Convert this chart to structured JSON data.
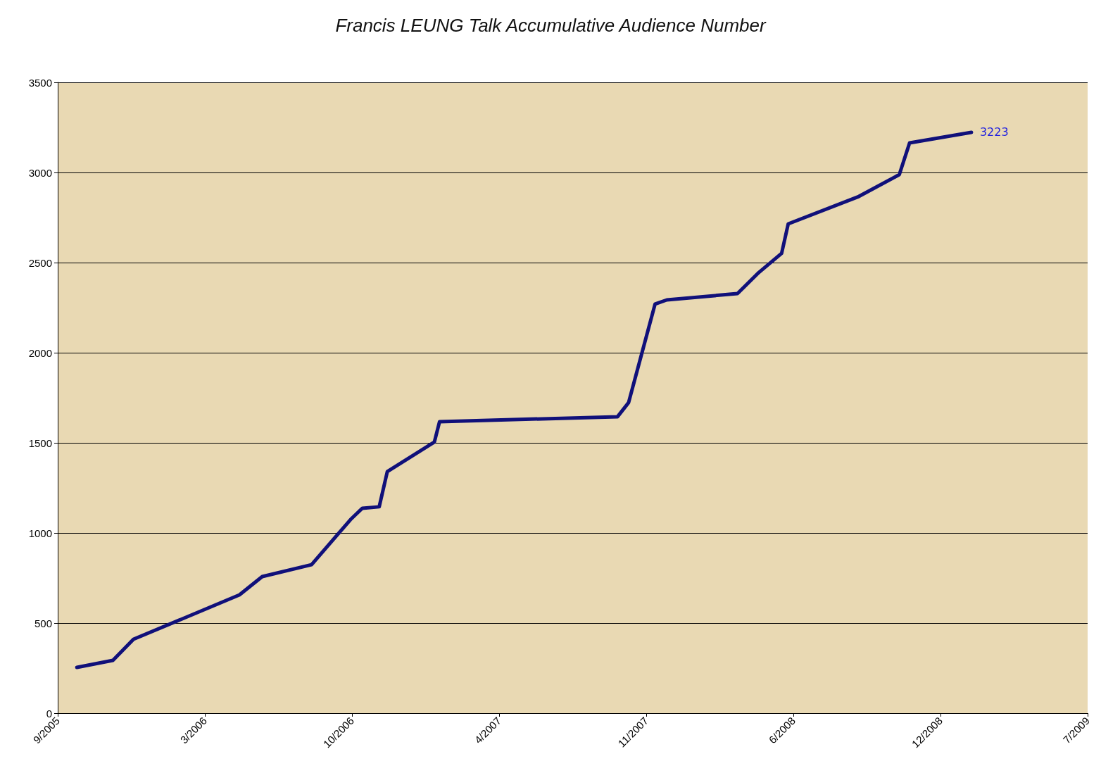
{
  "chart_data": {
    "type": "line",
    "title": "Francis LEUNG Talk Accumulative Audience Number",
    "x": [
      "2005-10-01",
      "2005-11-19",
      "2005-12-17",
      "2006-05-10",
      "2006-06-10",
      "2006-08-16",
      "2006-10-08",
      "2006-10-24",
      "2006-11-16",
      "2006-11-27",
      "2007-01-30",
      "2007-02-06",
      "2007-10-06",
      "2007-10-21",
      "2007-11-26",
      "2007-12-12",
      "2008-03-17",
      "2008-04-15",
      "2008-05-16",
      "2008-05-25",
      "2008-08-29",
      "2008-10-23",
      "2008-11-06",
      "2009-01-29"
    ],
    "series": [
      {
        "color": "#10107a",
        "values": [
          254,
          293,
          410,
          656,
          758,
          824,
          1074,
          1137,
          1145,
          1340,
          1504,
          1617,
          1645,
          1723,
          2270,
          2293,
          2328,
          2445,
          2551,
          2715,
          2867,
          2988,
          3164,
          3223
        ],
        "value_labels": [
          null,
          null,
          null,
          null,
          null,
          null,
          null,
          null,
          null,
          null,
          null,
          null,
          null,
          null,
          null,
          null,
          null,
          null,
          null,
          null,
          null,
          null,
          null,
          "3223"
        ]
      }
    ],
    "xlim": [
      "2005-09-05",
      "2009-07-06"
    ],
    "xticks": [
      {
        "value": "2005-09-05",
        "label": "9/2005"
      },
      {
        "value": "2006-03-24",
        "label": "3/2006"
      },
      {
        "value": "2006-10-10",
        "label": "10/2006"
      },
      {
        "value": "2007-04-28",
        "label": "4/2007"
      },
      {
        "value": "2007-11-14",
        "label": "11/2007"
      },
      {
        "value": "2008-06-01",
        "label": "6/2008"
      },
      {
        "value": "2008-12-18",
        "label": "12/2008"
      },
      {
        "value": "2009-07-06",
        "label": "7/2009"
      }
    ],
    "ylim": [
      0,
      3500
    ],
    "yticks": [
      0,
      500,
      1000,
      1500,
      2000,
      2500,
      3000,
      3500
    ],
    "grid": "y",
    "marker": "none",
    "line_style": "solid"
  }
}
